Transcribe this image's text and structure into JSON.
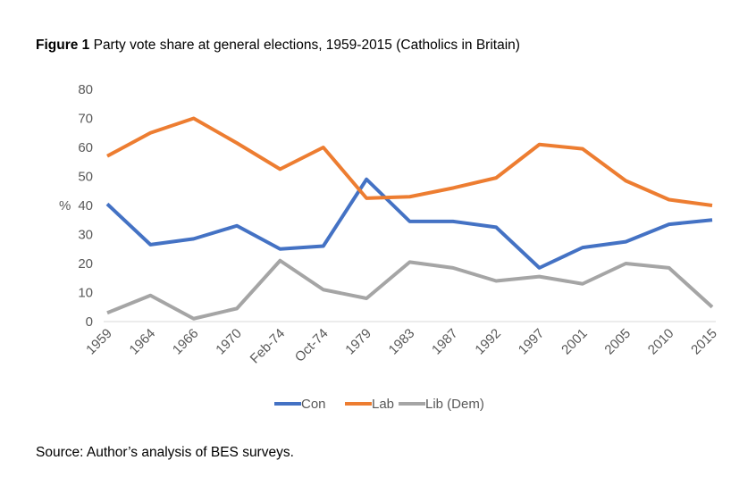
{
  "title": {
    "prefix": "Figure 1",
    "text": " Party vote share at general elections, 1959-2015 (Catholics in Britain)"
  },
  "source": "Source: Author’s analysis of BES surveys.",
  "chart_data": {
    "type": "line",
    "title": "Figure 1 Party vote share at general elections, 1959-2015 (Catholics in Britain)",
    "xlabel": "",
    "ylabel": "%",
    "ylim": [
      0,
      80
    ],
    "yticks": [
      0,
      10,
      20,
      30,
      40,
      50,
      60,
      70,
      80
    ],
    "grid": false,
    "legend_position": "bottom",
    "categories": [
      "1959",
      "1964",
      "1966",
      "1970",
      "Feb-74",
      "Oct-74",
      "1979",
      "1983",
      "1987",
      "1992",
      "1997",
      "2001",
      "2005",
      "2010",
      "2015"
    ],
    "series": [
      {
        "name": "Con",
        "color": "#4472C4",
        "values": [
          40.5,
          26.5,
          28.5,
          33,
          25,
          26,
          49,
          34.5,
          34.5,
          32.5,
          18.5,
          25.5,
          27.5,
          33.5,
          35
        ]
      },
      {
        "name": "Lab",
        "color": "#ED7D31",
        "values": [
          57,
          65,
          70,
          61.5,
          52.5,
          60,
          42.5,
          43,
          46,
          49.5,
          61,
          59.5,
          48.5,
          42,
          40
        ]
      },
      {
        "name": "Lib (Dem)",
        "color": "#A5A5A5",
        "values": [
          3,
          9,
          1,
          4.5,
          21,
          11,
          8,
          20.5,
          18.5,
          14,
          15.5,
          13,
          20,
          18.5,
          5
        ]
      }
    ]
  }
}
